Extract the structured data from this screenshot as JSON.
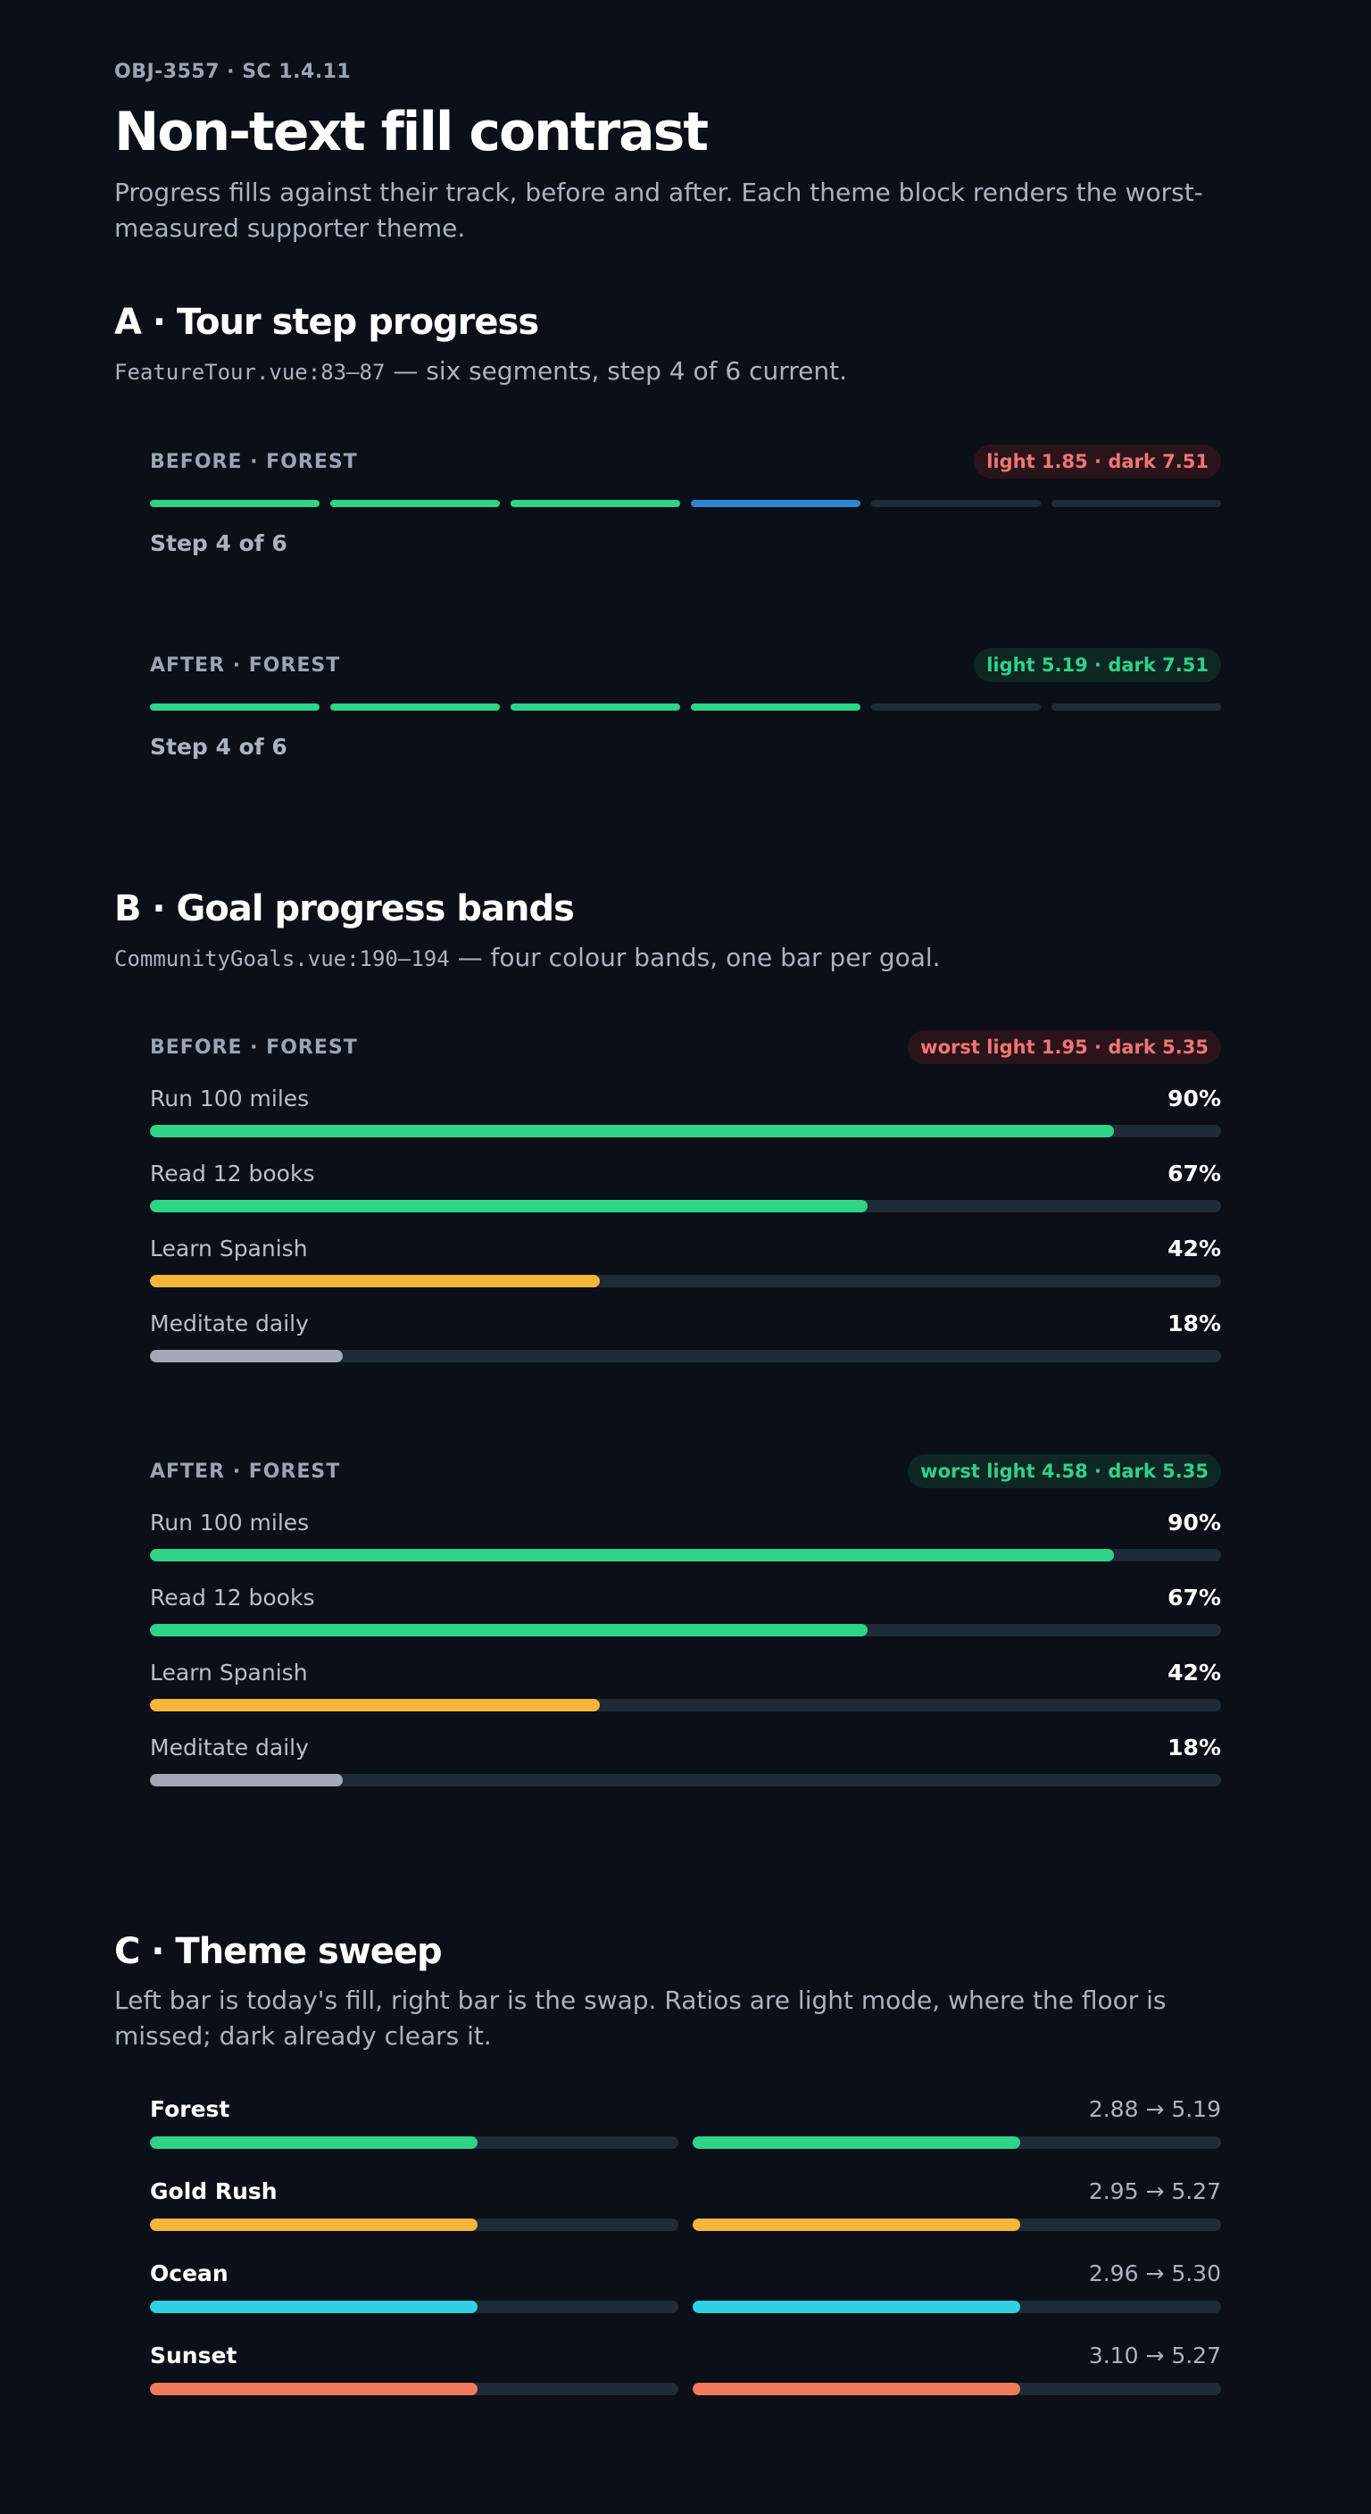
{
  "header": {
    "eyebrow": "OBJ-3557 · SC 1.4.11",
    "title": "Non-text fill contrast",
    "lede": "Progress fills against their track, before and after. Each theme block renders the worst-measured supporter theme."
  },
  "colors": {
    "green": "#2ed488",
    "blue": "#2b86d6",
    "gold": "#f5b63b",
    "grey": "#a2aab8",
    "cyan": "#2fd2e2",
    "sunset": "#f07a5a",
    "track": "#1f2c38"
  },
  "section_a": {
    "title": "A · Tour step progress",
    "file": "FeatureTour.vue:83–87",
    "desc": " — six segments, step 4 of 6 current.",
    "before": {
      "label": "BEFORE · FOREST",
      "badge": "light 1.85 · dark 7.51",
      "segments": [
        "green",
        "green",
        "green",
        "blue",
        "track",
        "track"
      ],
      "step_label": "Step 4 of 6"
    },
    "after": {
      "label": "AFTER · FOREST",
      "badge": "light 5.19 · dark 7.51",
      "segments": [
        "green",
        "green",
        "green",
        "green",
        "track",
        "track"
      ],
      "step_label": "Step 4 of 6"
    }
  },
  "section_b": {
    "title": "B · Goal progress bands",
    "file": "CommunityGoals.vue:190–194",
    "desc": " — four colour bands, one bar per goal.",
    "before": {
      "label": "BEFORE · FOREST",
      "badge": "worst light 1.95 · dark 5.35",
      "goals": [
        {
          "name": "Run 100 miles",
          "pct_label": "90%",
          "value": 0.9,
          "color": "green"
        },
        {
          "name": "Read 12 books",
          "pct_label": "67%",
          "value": 0.67,
          "color": "green"
        },
        {
          "name": "Learn Spanish",
          "pct_label": "42%",
          "value": 0.42,
          "color": "gold"
        },
        {
          "name": "Meditate daily",
          "pct_label": "18%",
          "value": 0.18,
          "color": "grey"
        }
      ]
    },
    "after": {
      "label": "AFTER · FOREST",
      "badge": "worst light 4.58 · dark 5.35",
      "goals": [
        {
          "name": "Run 100 miles",
          "pct_label": "90%",
          "value": 0.9,
          "color": "green"
        },
        {
          "name": "Read 12 books",
          "pct_label": "67%",
          "value": 0.67,
          "color": "green"
        },
        {
          "name": "Learn Spanish",
          "pct_label": "42%",
          "value": 0.42,
          "color": "gold"
        },
        {
          "name": "Meditate daily",
          "pct_label": "18%",
          "value": 0.18,
          "color": "grey"
        }
      ]
    }
  },
  "section_c": {
    "title": "C · Theme sweep",
    "desc": "Left bar is today's fill, right bar is the swap. Ratios are light mode, where the floor is missed; dark already clears it.",
    "themes": [
      {
        "name": "Forest",
        "ratio": "2.88 → 5.19",
        "value": 0.62,
        "color": "green"
      },
      {
        "name": "Gold Rush",
        "ratio": "2.95 → 5.27",
        "value": 0.62,
        "color": "gold"
      },
      {
        "name": "Ocean",
        "ratio": "2.96 → 5.30",
        "value": 0.62,
        "color": "cyan"
      },
      {
        "name": "Sunset",
        "ratio": "3.10 → 5.27",
        "value": 0.62,
        "color": "sunset"
      }
    ]
  }
}
